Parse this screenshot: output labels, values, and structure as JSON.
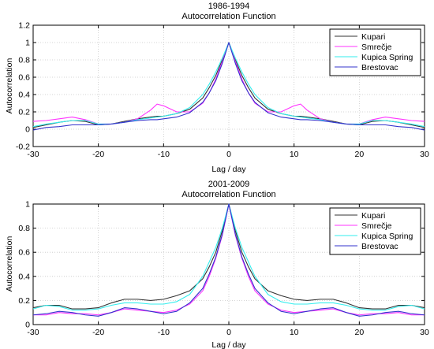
{
  "chart_data": [
    {
      "type": "line",
      "title_line1": "1986-1994",
      "title_line2": "Autocorrelation Function",
      "xlabel": "Lag / day",
      "ylabel": "Autocorrelation",
      "xlim": [
        -30,
        30
      ],
      "ylim": [
        -0.2,
        1.2
      ],
      "xticks": [
        -30,
        -20,
        -10,
        0,
        10,
        20,
        30
      ],
      "yticks": [
        -0.2,
        0,
        0.2,
        0.4,
        0.6,
        0.8,
        1,
        1.2
      ],
      "ytick_labels": [
        "-0.2",
        "0",
        "0.2",
        "0.4",
        "0.6",
        "0.8",
        "1",
        "1.2"
      ],
      "grid": true,
      "legend_position": "top-right",
      "x": [
        -30,
        -28,
        -26,
        -24,
        -22,
        -20,
        -18,
        -16,
        -14,
        -12,
        -11,
        -10,
        -8,
        -6,
        -4,
        -3,
        -2,
        -1,
        0,
        1,
        2,
        3,
        4,
        6,
        8,
        10,
        11,
        12,
        14,
        16,
        18,
        20,
        22,
        24,
        26,
        28,
        30
      ],
      "series": [
        {
          "name": "Kupari",
          "color": "#333333",
          "values": [
            0.02,
            0.05,
            0.08,
            0.1,
            0.09,
            0.05,
            0.06,
            0.09,
            0.12,
            0.14,
            0.15,
            0.15,
            0.18,
            0.23,
            0.36,
            0.48,
            0.62,
            0.8,
            1.0,
            0.8,
            0.62,
            0.48,
            0.36,
            0.23,
            0.18,
            0.15,
            0.15,
            0.14,
            0.12,
            0.09,
            0.06,
            0.05,
            0.09,
            0.1,
            0.08,
            0.05,
            0.02
          ]
        },
        {
          "name": "Smrečje",
          "color": "#ff33ff",
          "values": [
            0.09,
            0.1,
            0.12,
            0.14,
            0.11,
            0.06,
            0.06,
            0.08,
            0.12,
            0.22,
            0.29,
            0.27,
            0.2,
            0.2,
            0.3,
            0.42,
            0.58,
            0.78,
            1.0,
            0.78,
            0.58,
            0.42,
            0.3,
            0.2,
            0.2,
            0.27,
            0.29,
            0.22,
            0.12,
            0.08,
            0.06,
            0.06,
            0.11,
            0.14,
            0.12,
            0.1,
            0.09
          ]
        },
        {
          "name": "Kupica Spring",
          "color": "#33eeee",
          "values": [
            0.03,
            0.06,
            0.08,
            0.1,
            0.1,
            0.06,
            0.06,
            0.08,
            0.11,
            0.13,
            0.14,
            0.15,
            0.18,
            0.25,
            0.4,
            0.52,
            0.66,
            0.82,
            1.0,
            0.82,
            0.66,
            0.52,
            0.4,
            0.25,
            0.18,
            0.15,
            0.14,
            0.13,
            0.11,
            0.08,
            0.06,
            0.06,
            0.1,
            0.1,
            0.08,
            0.06,
            0.03
          ]
        },
        {
          "name": "Brestovac",
          "color": "#3333cc",
          "values": [
            -0.01,
            0.02,
            0.03,
            0.05,
            0.05,
            0.05,
            0.06,
            0.08,
            0.1,
            0.11,
            0.11,
            0.12,
            0.14,
            0.19,
            0.31,
            0.42,
            0.56,
            0.76,
            1.0,
            0.76,
            0.56,
            0.42,
            0.31,
            0.19,
            0.14,
            0.12,
            0.11,
            0.11,
            0.1,
            0.08,
            0.06,
            0.05,
            0.05,
            0.05,
            0.03,
            0.02,
            -0.01
          ]
        }
      ]
    },
    {
      "type": "line",
      "title_line1": "2001-2009",
      "title_line2": "Autocorrelation Function",
      "xlabel": "Lag / day",
      "ylabel": "Autocorrelation",
      "xlim": [
        -30,
        30
      ],
      "ylim": [
        0,
        1
      ],
      "xticks": [
        -30,
        -20,
        -10,
        0,
        10,
        20,
        30
      ],
      "yticks": [
        0,
        0.2,
        0.4,
        0.6,
        0.8,
        1
      ],
      "ytick_labels": [
        "0",
        "0.2",
        "0.4",
        "0.6",
        "0.8",
        "1"
      ],
      "grid": true,
      "legend_position": "top-right",
      "x": [
        -30,
        -28,
        -26,
        -24,
        -22,
        -20,
        -18,
        -16,
        -14,
        -12,
        -10,
        -8,
        -6,
        -4,
        -3,
        -2,
        -1,
        0,
        1,
        2,
        3,
        4,
        6,
        8,
        10,
        12,
        14,
        16,
        18,
        20,
        22,
        24,
        26,
        28,
        30
      ],
      "series": [
        {
          "name": "Kupari",
          "color": "#333333",
          "values": [
            0.14,
            0.16,
            0.16,
            0.13,
            0.13,
            0.14,
            0.18,
            0.21,
            0.21,
            0.2,
            0.21,
            0.24,
            0.28,
            0.38,
            0.48,
            0.6,
            0.78,
            1.0,
            0.78,
            0.6,
            0.48,
            0.38,
            0.28,
            0.24,
            0.21,
            0.2,
            0.21,
            0.21,
            0.18,
            0.14,
            0.13,
            0.13,
            0.16,
            0.16,
            0.14
          ]
        },
        {
          "name": "Smrečje",
          "color": "#ff33ff",
          "values": [
            0.08,
            0.08,
            0.1,
            0.09,
            0.09,
            0.08,
            0.1,
            0.13,
            0.12,
            0.11,
            0.1,
            0.12,
            0.17,
            0.28,
            0.4,
            0.55,
            0.74,
            1.0,
            0.74,
            0.55,
            0.4,
            0.28,
            0.17,
            0.12,
            0.1,
            0.11,
            0.12,
            0.13,
            0.1,
            0.08,
            0.09,
            0.09,
            0.1,
            0.08,
            0.08
          ]
        },
        {
          "name": "Kupica Spring",
          "color": "#33eeee",
          "values": [
            0.13,
            0.16,
            0.15,
            0.12,
            0.12,
            0.13,
            0.16,
            0.18,
            0.18,
            0.17,
            0.17,
            0.19,
            0.25,
            0.4,
            0.52,
            0.64,
            0.8,
            1.0,
            0.8,
            0.64,
            0.52,
            0.4,
            0.25,
            0.19,
            0.17,
            0.17,
            0.18,
            0.18,
            0.16,
            0.13,
            0.12,
            0.12,
            0.15,
            0.16,
            0.13
          ]
        },
        {
          "name": "Brestovac",
          "color": "#3333cc",
          "values": [
            0.08,
            0.09,
            0.11,
            0.1,
            0.08,
            0.07,
            0.1,
            0.14,
            0.13,
            0.11,
            0.09,
            0.11,
            0.18,
            0.3,
            0.42,
            0.56,
            0.75,
            1.0,
            0.75,
            0.56,
            0.42,
            0.3,
            0.18,
            0.11,
            0.09,
            0.11,
            0.13,
            0.14,
            0.1,
            0.07,
            0.08,
            0.1,
            0.11,
            0.09,
            0.08
          ]
        }
      ]
    }
  ]
}
